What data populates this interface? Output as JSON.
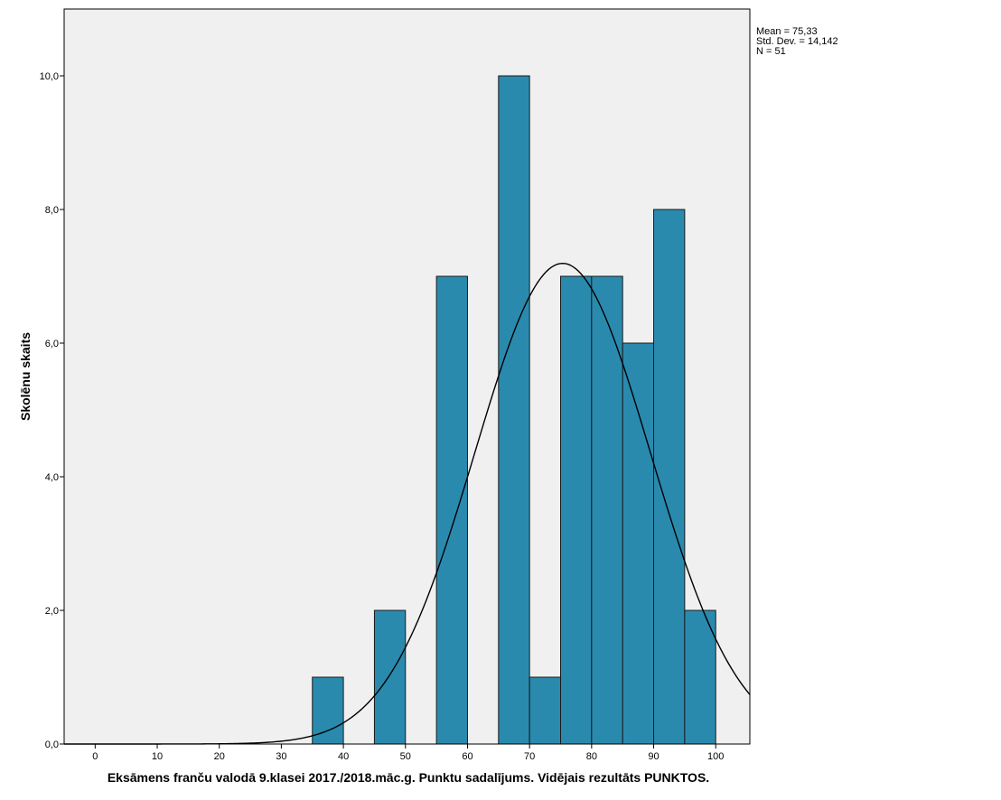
{
  "chart_data": {
    "type": "bar",
    "subtype": "histogram",
    "xlabel": "Eksāmens franču valodā 9.klasei 2017./2018.māc.g. Punktu sadalījums. Vidējais rezultāts PUNKTOS.",
    "ylabel": "Skolēnu skaits",
    "xlim": [
      -5,
      105.5
    ],
    "ylim": [
      0,
      11
    ],
    "xticks": [
      0,
      10,
      20,
      30,
      40,
      50,
      60,
      70,
      80,
      90,
      100
    ],
    "xtick_labels": [
      "0",
      "10",
      "20",
      "30",
      "40",
      "50",
      "60",
      "70",
      "80",
      "90",
      "100"
    ],
    "yticks": [
      0,
      2,
      4,
      6,
      8,
      10
    ],
    "ytick_labels": [
      "0,0",
      "2,0",
      "4,0",
      "6,0",
      "8,0",
      "10,0"
    ],
    "bin_width": 5,
    "bins": [
      {
        "start": 35,
        "end": 40,
        "count": 1
      },
      {
        "start": 45,
        "end": 50,
        "count": 2
      },
      {
        "start": 55,
        "end": 60,
        "count": 7
      },
      {
        "start": 65,
        "end": 70,
        "count": 10
      },
      {
        "start": 70,
        "end": 75,
        "count": 1
      },
      {
        "start": 75,
        "end": 80,
        "count": 7
      },
      {
        "start": 80,
        "end": 85,
        "count": 7
      },
      {
        "start": 85,
        "end": 90,
        "count": 6
      },
      {
        "start": 90,
        "end": 95,
        "count": 8
      },
      {
        "start": 95,
        "end": 100,
        "count": 2
      }
    ],
    "normal_curve": {
      "mean": 75.33,
      "std": 14.142,
      "n": 51
    },
    "stats_lines": [
      "Mean = 75,33",
      "Std. Dev. = 14,142",
      "N = 51"
    ],
    "grid": false,
    "colors": {
      "bar_fill": "#2a8aae",
      "bar_stroke": "#1a1a1a",
      "plot_background": "#f0f0f0",
      "curve": "#000000"
    }
  }
}
